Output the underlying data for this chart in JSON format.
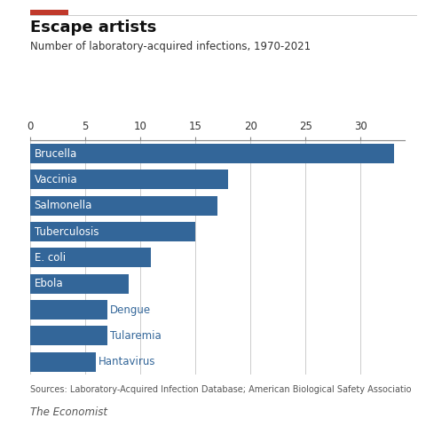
{
  "title": "Escape artists",
  "subtitle": "Number of laboratory-acquired infections, 1970-2021",
  "source": "Sources: Laboratory-Acquired Infection Database; American Biological Safety Associatio",
  "footer": "The Economist",
  "categories": [
    "Brucella",
    "Vaccinia",
    "Salmonella",
    "Tuberculosis",
    "E. coli",
    "Ebola",
    "Dengue",
    "Tularemia",
    "Hantavirus"
  ],
  "values": [
    33,
    18,
    17,
    15,
    11,
    9,
    7,
    7,
    6
  ],
  "bar_color": "#336699",
  "label_inside_color": "#FFFFFF",
  "label_outside_color": "#336699",
  "label_inside_count": 6,
  "xlim_max": 34,
  "xticks": [
    0,
    5,
    10,
    15,
    20,
    25,
    30
  ],
  "accent_color": "#C0392B",
  "grid_color": "#CCCCCC",
  "background_color": "#FFFFFF",
  "title_fontsize": 13,
  "subtitle_fontsize": 8.5,
  "label_fontsize": 8.5,
  "tick_fontsize": 8.5,
  "source_fontsize": 7,
  "footer_fontsize": 8.5
}
